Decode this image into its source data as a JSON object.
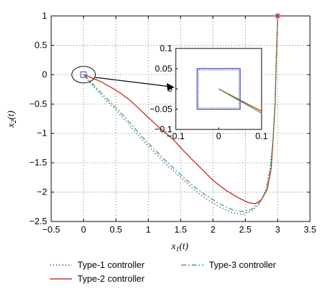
{
  "chart_data": {
    "type": "line",
    "xlabel": "x1(t)",
    "ylabel": "x2(t)",
    "xlim": [
      -0.5,
      3.5
    ],
    "ylim": [
      -2.5,
      1
    ],
    "x_ticks": [
      "−0.5",
      "0",
      "0.5",
      "1",
      "1.5",
      "2",
      "2.5",
      "3",
      "3.5"
    ],
    "y_ticks": [
      "1",
      "0.5",
      "0",
      "−0.5",
      "−1",
      "−1.5",
      "−2",
      "−2.5"
    ],
    "grid": true,
    "legend_position": "bottom",
    "initial_point": {
      "x": 3,
      "y": 1
    },
    "series": [
      {
        "name": "Type-1 controller",
        "color": "#3a45b0",
        "style": "dotted",
        "points": [
          [
            3,
            1
          ],
          [
            2.98,
            0.3
          ],
          [
            2.96,
            -0.5
          ],
          [
            2.93,
            -1.1
          ],
          [
            2.88,
            -1.6
          ],
          [
            2.82,
            -1.95
          ],
          [
            2.72,
            -2.2
          ],
          [
            2.6,
            -2.32
          ],
          [
            2.45,
            -2.38
          ],
          [
            2.3,
            -2.35
          ],
          [
            2.1,
            -2.25
          ],
          [
            1.9,
            -2.12
          ],
          [
            1.7,
            -1.95
          ],
          [
            1.5,
            -1.75
          ],
          [
            1.3,
            -1.55
          ],
          [
            1.1,
            -1.33
          ],
          [
            0.9,
            -1.1
          ],
          [
            0.7,
            -0.85
          ],
          [
            0.5,
            -0.6
          ],
          [
            0.3,
            -0.38
          ],
          [
            0.15,
            -0.2
          ],
          [
            0.05,
            -0.07
          ],
          [
            0,
            0
          ]
        ]
      },
      {
        "name": "Type-2 controller",
        "color": "#c8322c",
        "style": "solid",
        "points": [
          [
            3,
            1
          ],
          [
            2.98,
            0.3
          ],
          [
            2.96,
            -0.5
          ],
          [
            2.93,
            -1.1
          ],
          [
            2.9,
            -1.6
          ],
          [
            2.84,
            -1.95
          ],
          [
            2.75,
            -2.13
          ],
          [
            2.65,
            -2.2
          ],
          [
            2.55,
            -2.18
          ],
          [
            2.4,
            -2.1
          ],
          [
            2.2,
            -1.97
          ],
          [
            2.0,
            -1.8
          ],
          [
            1.85,
            -1.63
          ],
          [
            1.7,
            -1.47
          ],
          [
            1.55,
            -1.3
          ],
          [
            1.4,
            -1.12
          ],
          [
            1.2,
            -0.93
          ],
          [
            1.0,
            -0.73
          ],
          [
            0.85,
            -0.57
          ],
          [
            0.7,
            -0.42
          ],
          [
            0.55,
            -0.3
          ],
          [
            0.4,
            -0.2
          ],
          [
            0.25,
            -0.11
          ],
          [
            0.1,
            -0.04
          ],
          [
            0,
            0
          ]
        ]
      },
      {
        "name": "Type-3 controller",
        "color": "#3aa84a",
        "style": "dashdot",
        "points": [
          [
            3,
            1
          ],
          [
            2.98,
            0.3
          ],
          [
            2.96,
            -0.5
          ],
          [
            2.93,
            -1.1
          ],
          [
            2.89,
            -1.6
          ],
          [
            2.83,
            -1.95
          ],
          [
            2.73,
            -2.17
          ],
          [
            2.6,
            -2.29
          ],
          [
            2.45,
            -2.33
          ],
          [
            2.3,
            -2.3
          ],
          [
            2.1,
            -2.2
          ],
          [
            1.9,
            -2.06
          ],
          [
            1.7,
            -1.9
          ],
          [
            1.5,
            -1.7
          ],
          [
            1.3,
            -1.5
          ],
          [
            1.1,
            -1.28
          ],
          [
            0.9,
            -1.05
          ],
          [
            0.7,
            -0.8
          ],
          [
            0.5,
            -0.56
          ],
          [
            0.3,
            -0.34
          ],
          [
            0.15,
            -0.17
          ],
          [
            0.05,
            -0.05
          ],
          [
            0,
            0
          ]
        ]
      }
    ],
    "inset": {
      "xlim": [
        -0.1,
        0.1
      ],
      "ylim": [
        -0.1,
        0.1
      ],
      "x_ticks": [
        "−0.1",
        "0",
        "0.1"
      ],
      "y_ticks": [
        "0.1",
        "0.05",
        "0",
        "−0.05",
        "−0.1"
      ],
      "box": {
        "x0": -0.05,
        "x1": 0.05,
        "y0": -0.05,
        "y1": 0.05,
        "color": "#3a45b0"
      },
      "lines": [
        {
          "color": "#c8322c",
          "points": [
            [
              0,
              0
            ],
            [
              0.1,
              -0.055
            ]
          ]
        },
        {
          "color": "#3aa84a",
          "points": [
            [
              0,
              0
            ],
            [
              0.1,
              -0.06
            ]
          ]
        }
      ]
    }
  }
}
